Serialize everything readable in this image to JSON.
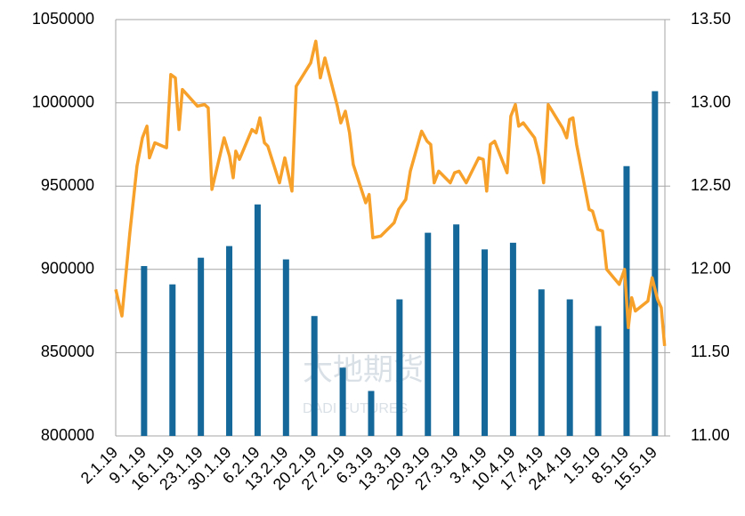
{
  "chart_data": {
    "type": "bar-line",
    "watermark": [
      "大地期货",
      "DADI FUTURES"
    ],
    "categories": [
      "2.1.19",
      "9.1.19",
      "16.1.19",
      "23.1.19",
      "30.1.19",
      "6.2.19",
      "13.2.19",
      "20.2.19",
      "27.2.19",
      "6.3.19",
      "13.3.19",
      "20.3.19",
      "27.3.19",
      "3.4.19",
      "10.4.19",
      "17.4.19",
      "24.4.19",
      "1.5.19",
      "8.5.19",
      "15.5.19"
    ],
    "ylim": [
      800000,
      1050000
    ],
    "yticks": [
      800000,
      850000,
      900000,
      950000,
      1000000,
      1050000
    ],
    "y2lim": [
      11,
      13.5
    ],
    "y2ticks": [
      {
        "value": 11,
        "label": "11.00"
      },
      {
        "value": 11.5,
        "label": "11.50"
      },
      {
        "value": 12,
        "label": "12.00"
      },
      {
        "value": 12.5,
        "label": "12.50"
      },
      {
        "value": 13,
        "label": "13.00"
      },
      {
        "value": 13.5,
        "label": "13.50"
      }
    ],
    "xlim": [
      0,
      19.35
    ],
    "grid": true,
    "series": [
      {
        "type": "bar",
        "color": "#14689a",
        "values": [
          null,
          902000,
          891000,
          907000,
          914000,
          939000,
          906000,
          872000,
          841000,
          827000,
          882000,
          922000,
          927000,
          912000,
          916000,
          888000,
          882000,
          866000,
          962000,
          1007000
        ]
      },
      {
        "type": "line",
        "axis": "y2",
        "color": "#f7a02a",
        "x": [
          0,
          0.22,
          0.5,
          0.75,
          0.94,
          1.1,
          1.19,
          1.38,
          1.79,
          1.94,
          2.1,
          2.23,
          2.35,
          2.88,
          3.13,
          3.26,
          3.39,
          3.82,
          4.01,
          4.14,
          4.23,
          4.36,
          4.8,
          4.95,
          5.08,
          5.24,
          5.36,
          5.77,
          5.96,
          6.21,
          6.36,
          6.87,
          7.05,
          7.21,
          7.37,
          7.81,
          7.93,
          8.09,
          8.24,
          8.37,
          8.81,
          8.93,
          9.06,
          9.34,
          9.81,
          9.97,
          10.22,
          10.38,
          10.78,
          10.97,
          11.1,
          11.22,
          11.38,
          11.79,
          11.94,
          12.1,
          12.35,
          12.79,
          12.95,
          13.07,
          13.2,
          13.35,
          13.79,
          13.92,
          14.08,
          14.2,
          14.36,
          14.76,
          14.92,
          15.08,
          15.24,
          15.74,
          15.89,
          15.99,
          16.11,
          16.24,
          16.68,
          16.8,
          16.99,
          17.15,
          17.3,
          17.74,
          17.93,
          18.06,
          18.18,
          18.31,
          18.75,
          18.9,
          19.09,
          19.22,
          19.34
        ],
        "values": [
          11.88,
          11.72,
          12.22,
          12.62,
          12.79,
          12.86,
          12.67,
          12.76,
          12.73,
          13.17,
          13.15,
          12.84,
          13.08,
          12.98,
          12.99,
          12.97,
          12.48,
          12.79,
          12.68,
          12.55,
          12.71,
          12.66,
          12.84,
          12.82,
          12.91,
          12.76,
          12.74,
          12.52,
          12.67,
          12.47,
          13.1,
          13.24,
          13.37,
          13.15,
          13.27,
          12.98,
          12.88,
          12.95,
          12.82,
          12.63,
          12.4,
          12.45,
          12.19,
          12.2,
          12.28,
          12.36,
          12.42,
          12.59,
          12.83,
          12.77,
          12.75,
          12.52,
          12.59,
          12.52,
          12.58,
          12.59,
          12.52,
          12.67,
          12.66,
          12.47,
          12.75,
          12.77,
          12.58,
          12.92,
          12.99,
          12.86,
          12.88,
          12.79,
          12.68,
          12.52,
          12.99,
          12.85,
          12.79,
          12.9,
          12.91,
          12.75,
          12.36,
          12.35,
          12.24,
          12.23,
          12,
          11.91,
          12,
          11.65,
          11.83,
          11.75,
          11.81,
          11.95,
          11.82,
          11.77,
          11.54
        ]
      }
    ]
  }
}
